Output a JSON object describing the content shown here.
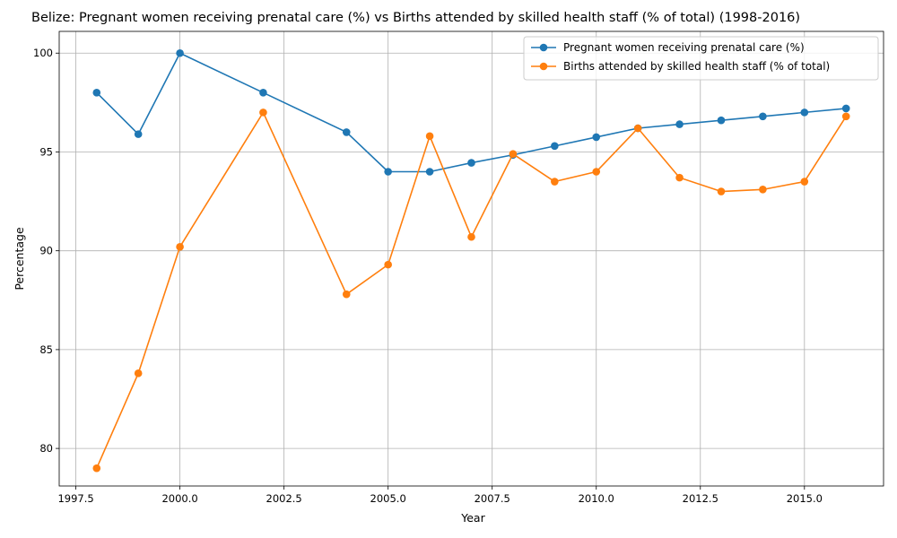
{
  "chart_data": {
    "type": "line",
    "title": "Belize: Pregnant women receiving prenatal care (%) vs Births attended by skilled health staff (% of total) (1998-2016)",
    "xlabel": "Year",
    "ylabel": "Percentage",
    "xlim": [
      1997.1,
      2016.9
    ],
    "ylim": [
      78.1,
      101.1
    ],
    "x_ticks": [
      1997.5,
      2000.0,
      2002.5,
      2005.0,
      2007.5,
      2010.0,
      2012.5,
      2015.0
    ],
    "x_tick_labels": [
      "1997.5",
      "2000.0",
      "2002.5",
      "2005.0",
      "2007.5",
      "2010.0",
      "2012.5",
      "2015.0"
    ],
    "y_ticks": [
      80,
      85,
      90,
      95,
      100
    ],
    "y_tick_labels": [
      "80",
      "85",
      "90",
      "95",
      "100"
    ],
    "grid": true,
    "legend_position": "upper right",
    "series": [
      {
        "name": "Pregnant women receiving prenatal care (%)",
        "color": "#1f77b4",
        "x": [
          1998,
          1999,
          2000,
          2002,
          2004,
          2005,
          2006,
          2007,
          2008,
          2009,
          2010,
          2011,
          2012,
          2013,
          2014,
          2015,
          2016
        ],
        "values": [
          98.0,
          95.9,
          100.0,
          98.0,
          96.0,
          94.0,
          94.0,
          94.45,
          94.85,
          95.3,
          95.75,
          96.2,
          96.4,
          96.6,
          96.8,
          97.0,
          97.2
        ]
      },
      {
        "name": "Births attended by skilled health staff (% of total)",
        "color": "#ff7f0e",
        "x": [
          1998,
          1999,
          2000,
          2002,
          2004,
          2005,
          2006,
          2007,
          2008,
          2009,
          2010,
          2011,
          2012,
          2013,
          2014,
          2015,
          2016
        ],
        "values": [
          79.0,
          83.8,
          90.2,
          97.0,
          87.8,
          89.3,
          95.8,
          90.7,
          94.9,
          93.5,
          94.0,
          96.2,
          93.7,
          93.0,
          93.1,
          93.5,
          96.8
        ]
      }
    ]
  }
}
